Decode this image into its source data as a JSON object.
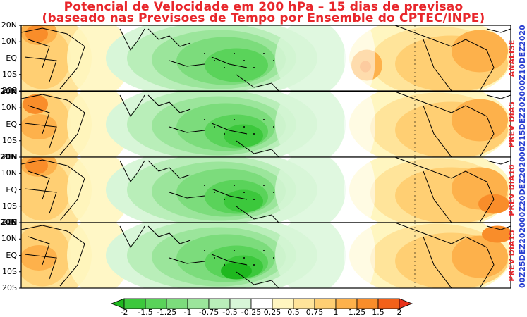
{
  "title": {
    "line1": "Potencial de Velocidade em 200 hPa – 15 dias de previsao",
    "line2": "(baseado nas Previsoes de Tempo por Ensemble do CPTEC/INPE)"
  },
  "lat_ticks": [
    "20N",
    "10N",
    "EQ",
    "10S",
    "20S"
  ],
  "panels": [
    {
      "name": "ANALISE",
      "date": "00Z10DEZ2020"
    },
    {
      "name": "PREV DIA5",
      "date": "00Z15DEZ2020"
    },
    {
      "name": "PREV DIA10",
      "date": "00Z20DEZ2020"
    },
    {
      "name": "PREV DIA15",
      "date": "00Z25DEZ2020"
    }
  ],
  "colorbar": {
    "labels": [
      "-2",
      "-1.5",
      "-1.25",
      "-1",
      "-0.75",
      "-0.5",
      "-0.25",
      "0.25",
      "0.5",
      "0.75",
      "1",
      "1.25",
      "1.5",
      "2"
    ],
    "colors": [
      "#1fb81f",
      "#3cc83c",
      "#5ad35a",
      "#7cdc7c",
      "#9be59b",
      "#b9eeb9",
      "#d8f6d8",
      "#ffffff",
      "#fff6c0",
      "#ffe49a",
      "#ffcf73",
      "#fdb14b",
      "#f98d2a",
      "#f2611a",
      "#e8321a"
    ]
  },
  "colors": {
    "title_red": "#e8262b",
    "date_blue": "#2a3fd1"
  }
}
